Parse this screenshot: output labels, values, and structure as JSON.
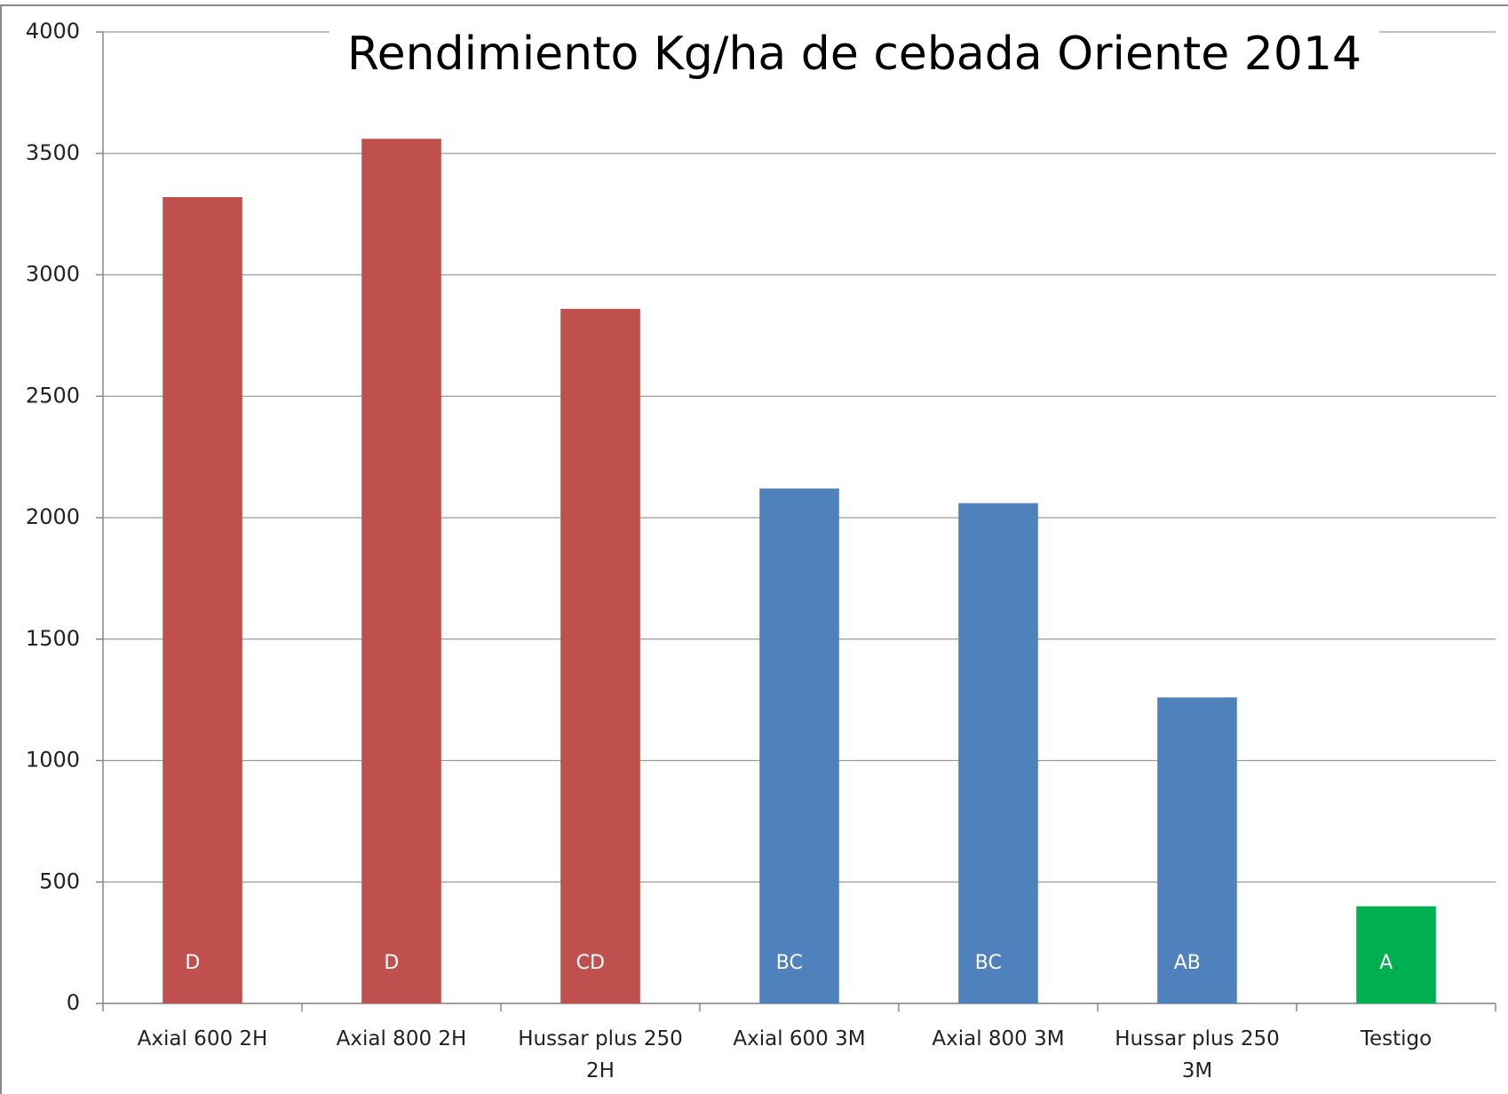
{
  "chart_data": {
    "type": "bar",
    "title": "Rendimiento Kg/ha de cebada Oriente 2014",
    "categories": [
      "Axial 600 2H",
      "Axial 800 2H",
      "Hussar plus 250 2H",
      "Axial 600 3M",
      "Axial 800 3M",
      "Hussar plus 250 3M",
      "Testigo"
    ],
    "values": [
      3320,
      3560,
      2860,
      2120,
      2060,
      1260,
      400
    ],
    "annotations": [
      "D",
      "D",
      "CD",
      "BC",
      "BC",
      "AB",
      "A"
    ],
    "colors": [
      "#c0504d",
      "#c0504d",
      "#c0504d",
      "#4f81bd",
      "#4f81bd",
      "#4f81bd",
      "#00b050"
    ],
    "ylim": [
      0,
      4000
    ],
    "yticks": [
      0,
      500,
      1000,
      1500,
      2000,
      2500,
      3000,
      3500,
      4000
    ],
    "grid": true
  }
}
